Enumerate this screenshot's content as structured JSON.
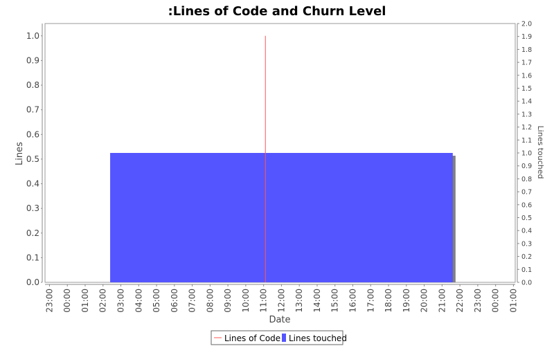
{
  "chart_data": {
    "type": "bar",
    "title": ":Lines of Code and Churn Level",
    "xlabel": "Date",
    "ylabel_left": "Lines",
    "ylabel_right": "Lines touched",
    "x_ticks": [
      "23:00",
      "00:00",
      "01:00",
      "02:00",
      "03:00",
      "04:00",
      "05:00",
      "06:00",
      "07:00",
      "08:00",
      "09:00",
      "10:00",
      "11:00",
      "12:00",
      "13:00",
      "14:00",
      "15:00",
      "16:00",
      "17:00",
      "18:00",
      "19:00",
      "20:00",
      "21:00",
      "22:00",
      "23:00",
      "00:00",
      "01:00"
    ],
    "x_tick_hours": [
      -1,
      0,
      1,
      2,
      3,
      4,
      5,
      6,
      7,
      8,
      9,
      10,
      11,
      12,
      13,
      14,
      15,
      16,
      17,
      18,
      19,
      20,
      21,
      22,
      23,
      24,
      25
    ],
    "x_range_hours": [
      -1.25,
      25.1
    ],
    "left_axis": {
      "ylim": [
        0,
        1.05
      ],
      "ticks": [
        0.0,
        0.1,
        0.2,
        0.3,
        0.4,
        0.5,
        0.6,
        0.7,
        0.8,
        0.9,
        1.0
      ],
      "tick_labels": [
        "0.0",
        "0.1",
        "0.2",
        "0.3",
        "0.4",
        "0.5",
        "0.6",
        "0.7",
        "0.8",
        "0.9",
        "1.0"
      ]
    },
    "right_axis": {
      "ylim": [
        0,
        2.0
      ],
      "ticks": [
        0.0,
        0.1,
        0.2,
        0.3,
        0.4,
        0.5,
        0.6,
        0.7,
        0.8,
        0.9,
        1.0,
        1.1,
        1.2,
        1.3,
        1.4,
        1.5,
        1.6,
        1.7,
        1.8,
        1.9,
        2.0
      ],
      "tick_labels": [
        "0.0",
        "0.1",
        "0.2",
        "0.3",
        "0.4",
        "0.5",
        "0.6",
        "0.7",
        "0.8",
        "0.9",
        "1.0",
        "1.1",
        "1.2",
        "1.3",
        "1.4",
        "1.5",
        "1.6",
        "1.7",
        "1.8",
        "1.9",
        "2.0"
      ]
    },
    "series": [
      {
        "name": "Lines of Code",
        "kind": "line",
        "axis": "left",
        "color": "#ff5555",
        "points": [
          {
            "x_hour": 11.1,
            "y": 0.0
          },
          {
            "x_hour": 11.1,
            "y": 1.0
          }
        ]
      },
      {
        "name": "Lines touched",
        "kind": "bar",
        "axis": "right",
        "color": "#5555ff",
        "shadow_color": "#808080",
        "bars": [
          {
            "start_hour": 2.4,
            "end_hour": 21.6,
            "value": 1.0
          }
        ]
      }
    ],
    "legend": {
      "position": "bottom-center",
      "items": [
        {
          "label": "Lines of Code",
          "marker": "line",
          "color": "#ff5555"
        },
        {
          "label": "Lines touched",
          "marker": "box",
          "color": "#5555ff"
        }
      ]
    }
  }
}
